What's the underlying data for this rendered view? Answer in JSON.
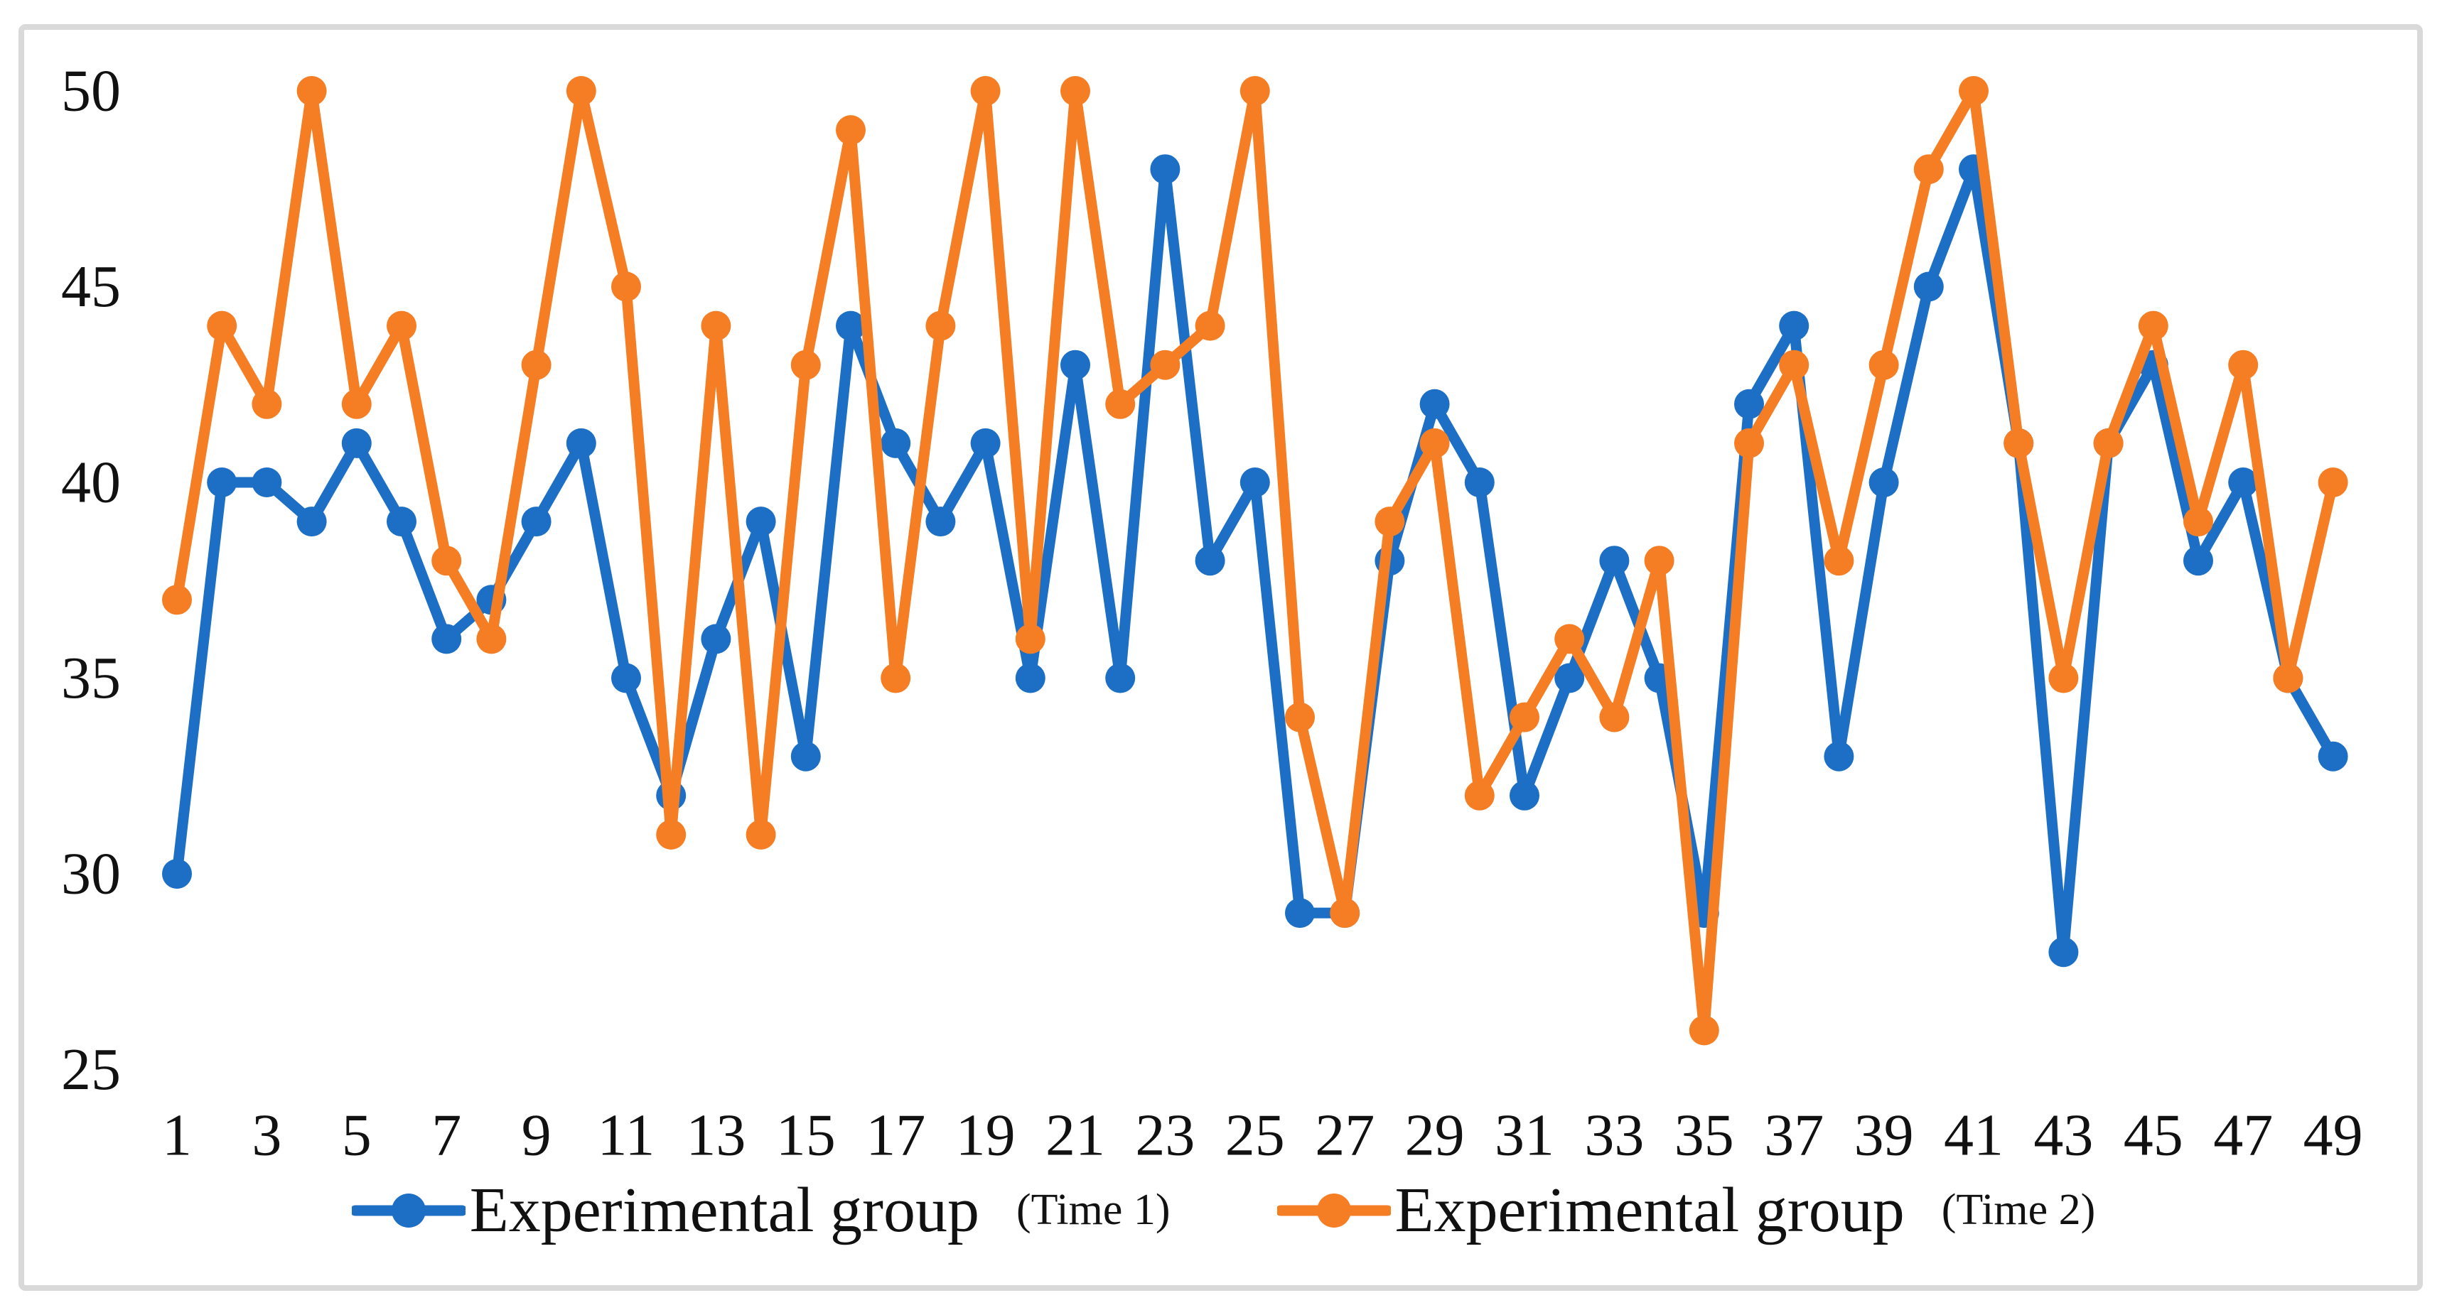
{
  "chart_data": {
    "type": "line",
    "x": [
      1,
      2,
      3,
      4,
      5,
      6,
      7,
      8,
      9,
      10,
      11,
      12,
      13,
      14,
      15,
      16,
      17,
      18,
      19,
      20,
      21,
      22,
      23,
      24,
      25,
      26,
      27,
      28,
      29,
      30,
      31,
      32,
      33,
      34,
      35,
      36,
      37,
      38,
      39,
      40,
      41,
      42,
      43,
      44,
      45,
      46,
      47,
      48,
      49
    ],
    "x_tick_labels": [
      "1",
      "3",
      "5",
      "7",
      "9",
      "11",
      "13",
      "15",
      "17",
      "19",
      "21",
      "23",
      "25",
      "27",
      "29",
      "31",
      "33",
      "35",
      "37",
      "39",
      "41",
      "43",
      "45",
      "47",
      "49"
    ],
    "y_tick_labels": [
      "50",
      "45",
      "40",
      "35",
      "30",
      "25"
    ],
    "y_ticks": [
      50,
      45,
      40,
      35,
      30,
      25
    ],
    "ylim": [
      25,
      50
    ],
    "grid": false,
    "title": "",
    "xlabel": "",
    "ylabel": "",
    "legend_position": "bottom",
    "series": [
      {
        "name": "Experimental group",
        "sublabel": "(Time 1)",
        "color": "#1c6fc5",
        "values": [
          30,
          40,
          40,
          39,
          41,
          39,
          36,
          37,
          39,
          41,
          35,
          32,
          36,
          39,
          33,
          44,
          41,
          39,
          41,
          35,
          43,
          35,
          48,
          38,
          40,
          29,
          29,
          38,
          42,
          40,
          32,
          35,
          38,
          35,
          29,
          42,
          44,
          33,
          40,
          45,
          48,
          41,
          28,
          41,
          43,
          38,
          40,
          35,
          33
        ]
      },
      {
        "name": "Experimental group",
        "sublabel": "(Time 2)",
        "color": "#f57e24",
        "values": [
          37,
          44,
          42,
          50,
          42,
          44,
          38,
          36,
          43,
          50,
          45,
          31,
          44,
          31,
          43,
          49,
          35,
          44,
          50,
          36,
          50,
          42,
          43,
          44,
          50,
          34,
          29,
          39,
          41,
          32,
          34,
          36,
          34,
          38,
          26,
          41,
          43,
          38,
          43,
          48,
          50,
          41,
          35,
          41,
          44,
          39,
          43,
          35,
          40
        ]
      }
    ]
  },
  "frame": {
    "border_color": "#d9d9d9"
  },
  "legend": {
    "items": [
      {
        "label": "Experimental group",
        "sublabel": "(Time 1)"
      },
      {
        "label": "Experimental group",
        "sublabel": "(Time 2)"
      }
    ]
  }
}
